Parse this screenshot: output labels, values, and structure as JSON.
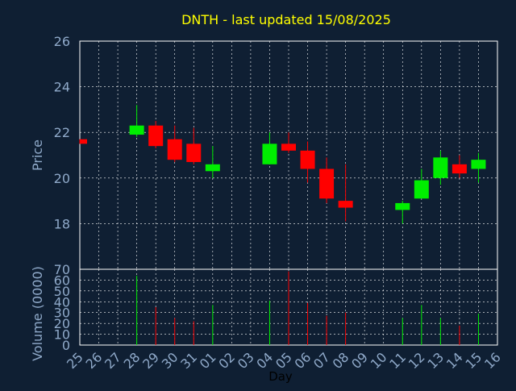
{
  "page": {
    "title": "DNTH - last updated 15/08/2025"
  },
  "colors": {
    "background": "#0f1f33",
    "grid": "#ffffff",
    "text": "#8fa9c9",
    "title": "#ffff00",
    "up": "#00ee00",
    "down": "#ff0000"
  },
  "chart_data": [
    {
      "type": "candlestick",
      "title": "DNTH - last updated 15/08/2025",
      "ylabel": "Price",
      "ylim": [
        16,
        26
      ],
      "yticks": [
        "18",
        "20",
        "22",
        "24",
        "26"
      ],
      "grid": true,
      "categories": [
        "25",
        "26",
        "27",
        "28",
        "29",
        "30",
        "31",
        "01",
        "02",
        "03",
        "04",
        "05",
        "06",
        "07",
        "08",
        "09",
        "10",
        "11",
        "12",
        "13",
        "14",
        "15",
        "16"
      ],
      "series": [
        {
          "day": "25",
          "open": 21.7,
          "close": 21.5,
          "high": 21.7,
          "low": 21.5
        },
        {
          "day": "28",
          "open": 21.9,
          "close": 22.3,
          "high": 23.2,
          "low": 21.8
        },
        {
          "day": "29",
          "open": 22.3,
          "close": 21.4,
          "high": 22.5,
          "low": 21.3
        },
        {
          "day": "30",
          "open": 21.7,
          "close": 20.8,
          "high": 22.3,
          "low": 20.7
        },
        {
          "day": "31",
          "open": 21.5,
          "close": 20.7,
          "high": 22.2,
          "low": 20.6
        },
        {
          "day": "01",
          "open": 20.3,
          "close": 20.6,
          "high": 21.4,
          "low": 20.0
        },
        {
          "day": "04",
          "open": 20.6,
          "close": 21.5,
          "high": 22.0,
          "low": 20.6
        },
        {
          "day": "05",
          "open": 21.5,
          "close": 21.2,
          "high": 22.0,
          "low": 21.1
        },
        {
          "day": "06",
          "open": 21.2,
          "close": 20.4,
          "high": 21.6,
          "low": 19.8
        },
        {
          "day": "07",
          "open": 20.4,
          "close": 19.1,
          "high": 20.9,
          "low": 18.9
        },
        {
          "day": "08",
          "open": 19.0,
          "close": 18.7,
          "high": 20.6,
          "low": 18.1
        },
        {
          "day": "11",
          "open": 18.6,
          "close": 18.9,
          "high": 19.0,
          "low": 18.0
        },
        {
          "day": "12",
          "open": 19.1,
          "close": 19.9,
          "high": 20.4,
          "low": 19.1
        },
        {
          "day": "13",
          "open": 20.0,
          "close": 20.9,
          "high": 21.2,
          "low": 19.7
        },
        {
          "day": "14",
          "open": 20.6,
          "close": 20.2,
          "high": 21.0,
          "low": 20.0
        },
        {
          "day": "15",
          "open": 20.4,
          "close": 20.8,
          "high": 21.1,
          "low": 19.8
        }
      ]
    },
    {
      "type": "bar",
      "ylabel": "Volume (0000)",
      "xlabel": "Day",
      "ylim": [
        0,
        70
      ],
      "yticks": [
        "0",
        "10",
        "20",
        "30",
        "40",
        "50",
        "60",
        "70"
      ],
      "grid": true,
      "categories": [
        "25",
        "26",
        "27",
        "28",
        "29",
        "30",
        "31",
        "01",
        "02",
        "03",
        "04",
        "05",
        "06",
        "07",
        "08",
        "09",
        "10",
        "11",
        "12",
        "13",
        "14",
        "15",
        "16"
      ],
      "values": [
        {
          "day": "28",
          "volume": 64,
          "dir": "up"
        },
        {
          "day": "29",
          "volume": 35,
          "dir": "down"
        },
        {
          "day": "30",
          "volume": 25,
          "dir": "down"
        },
        {
          "day": "31",
          "volume": 22,
          "dir": "down"
        },
        {
          "day": "01",
          "volume": 37,
          "dir": "up"
        },
        {
          "day": "04",
          "volume": 41,
          "dir": "up"
        },
        {
          "day": "05",
          "volume": 68,
          "dir": "down"
        },
        {
          "day": "06",
          "volume": 39,
          "dir": "down"
        },
        {
          "day": "07",
          "volume": 27,
          "dir": "down"
        },
        {
          "day": "08",
          "volume": 30,
          "dir": "down"
        },
        {
          "day": "11",
          "volume": 25,
          "dir": "up"
        },
        {
          "day": "12",
          "volume": 37,
          "dir": "up"
        },
        {
          "day": "13",
          "volume": 25,
          "dir": "up"
        },
        {
          "day": "14",
          "volume": 18,
          "dir": "down"
        },
        {
          "day": "15",
          "volume": 29,
          "dir": "up"
        }
      ]
    }
  ]
}
